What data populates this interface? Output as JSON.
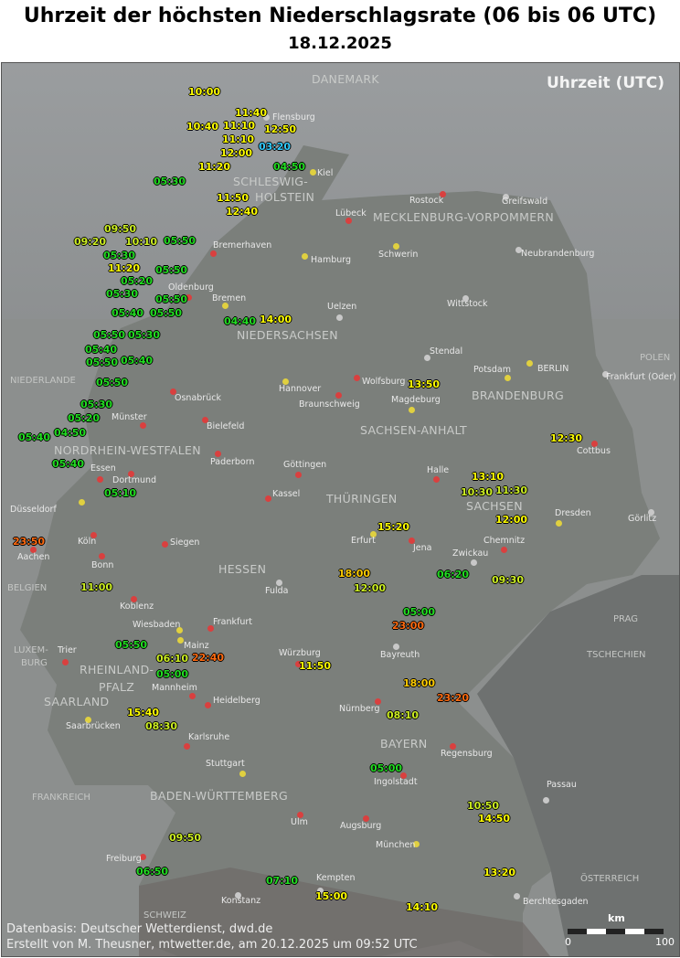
{
  "title": "Uhrzeit der höchsten Niederschlagsrate (06 bis 06 UTC)",
  "date": "18.12.2025",
  "corner_label": "Uhrzeit (UTC)",
  "footer": {
    "line1": "Datenbasis: Deutscher Wetterdienst, dwd.de",
    "line2": "Erstellt von M. Theusner, mtwetter.de, am 20.12.2025 um 09:52 UTC"
  },
  "scale": {
    "unit": "km",
    "min": "0",
    "max": "100"
  },
  "colors": {
    "cyan": "#33ccff",
    "green": "#22dd22",
    "yellowgreen": "#ccee22",
    "yellow": "#ffff00",
    "gold": "#ffcc00",
    "orange": "#ff6a10",
    "city_red": "#d9403f",
    "city_yellow": "#e0d040",
    "city_grey": "#c8c8c8"
  },
  "regions": [
    "DANEMARK",
    "SCHLESWIG-",
    "HOLSTEIN",
    "MECKLENBURG-VORPOMMERN",
    "NIEDERSACHSEN",
    "BRANDENBURG",
    "SACHSEN-ANHALT",
    "NORDRHEIN-WESTFALEN",
    "THÜRINGEN",
    "SACHSEN",
    "HESSEN",
    "RHEINLAND-",
    "PFALZ",
    "SAARLAND",
    "BAYERN",
    "BADEN-WÜRTTEMBERG"
  ],
  "countries": [
    "NIEDERLANDE",
    "BELGIEN",
    "LUXEM-",
    "BURG",
    "FRANKREICH",
    "TSCHECHIEN",
    "ÖSTERREICH",
    "POLEN",
    "SCHWEIZ",
    "PRAG"
  ],
  "cities": [
    {
      "name": "Flensburg",
      "type": "grey"
    },
    {
      "name": "Kiel",
      "type": "yellow"
    },
    {
      "name": "Rostock",
      "type": "red"
    },
    {
      "name": "Greifswald",
      "type": "grey"
    },
    {
      "name": "Lübeck",
      "type": "red"
    },
    {
      "name": "Schwerin",
      "type": "yellow"
    },
    {
      "name": "Hamburg",
      "type": "yellow"
    },
    {
      "name": "Bremerhaven",
      "type": "red"
    },
    {
      "name": "Neubrandenburg",
      "type": "grey"
    },
    {
      "name": "Oldenburg",
      "type": "red"
    },
    {
      "name": "Bremen",
      "type": "yellow"
    },
    {
      "name": "Uelzen",
      "type": "grey"
    },
    {
      "name": "Wittstock",
      "type": "grey"
    },
    {
      "name": "Stendal",
      "type": "grey"
    },
    {
      "name": "Potsdam",
      "type": "yellow"
    },
    {
      "name": "BERLIN",
      "type": "yellow"
    },
    {
      "name": "Frankfurt (Oder)",
      "type": "grey"
    },
    {
      "name": "Wolfsburg",
      "type": "red"
    },
    {
      "name": "Hannover",
      "type": "yellow"
    },
    {
      "name": "Braunschweig",
      "type": "red"
    },
    {
      "name": "Magdeburg",
      "type": "yellow"
    },
    {
      "name": "Osnabrück",
      "type": "red"
    },
    {
      "name": "Bielefeld",
      "type": "red"
    },
    {
      "name": "Münster",
      "type": "red"
    },
    {
      "name": "Paderborn",
      "type": "red"
    },
    {
      "name": "Dortmund",
      "type": "red"
    },
    {
      "name": "Göttingen",
      "type": "red"
    },
    {
      "name": "Halle",
      "type": "red"
    },
    {
      "name": "Cottbus",
      "type": "red"
    },
    {
      "name": "Kassel",
      "type": "red"
    },
    {
      "name": "Dresden",
      "type": "yellow"
    },
    {
      "name": "Görlitz",
      "type": "grey"
    },
    {
      "name": "Düsseldorf",
      "type": "yellow"
    },
    {
      "name": "Erfurt",
      "type": "yellow"
    },
    {
      "name": "Jena",
      "type": "red"
    },
    {
      "name": "Chemnitz",
      "type": "red"
    },
    {
      "name": "Zwickau",
      "type": "grey"
    },
    {
      "name": "Köln",
      "type": "red"
    },
    {
      "name": "Siegen",
      "type": "red"
    },
    {
      "name": "Aachen",
      "type": "red"
    },
    {
      "name": "Bonn",
      "type": "red"
    },
    {
      "name": "Fulda",
      "type": "grey"
    },
    {
      "name": "Koblenz",
      "type": "red"
    },
    {
      "name": "Wiesbaden",
      "type": "yellow"
    },
    {
      "name": "Frankfurt",
      "type": "red"
    },
    {
      "name": "Mainz",
      "type": "yellow"
    },
    {
      "name": "Würzburg",
      "type": "red"
    },
    {
      "name": "Bayreuth",
      "type": "grey"
    },
    {
      "name": "Trier",
      "type": "red"
    },
    {
      "name": "Mannheim",
      "type": "red"
    },
    {
      "name": "Heidelberg",
      "type": "red"
    },
    {
      "name": "Nürnberg",
      "type": "red"
    },
    {
      "name": "Saarbrücken",
      "type": "yellow"
    },
    {
      "name": "Karlsruhe",
      "type": "red"
    },
    {
      "name": "Regensburg",
      "type": "red"
    },
    {
      "name": "Stuttgart",
      "type": "yellow"
    },
    {
      "name": "Ingolstadt",
      "type": "red"
    },
    {
      "name": "Passau",
      "type": "grey"
    },
    {
      "name": "Ulm",
      "type": "red"
    },
    {
      "name": "Augsburg",
      "type": "red"
    },
    {
      "name": "München",
      "type": "yellow"
    },
    {
      "name": "Freiburg",
      "type": "red"
    },
    {
      "name": "Kempten",
      "type": "grey"
    },
    {
      "name": "Konstanz",
      "type": "grey"
    },
    {
      "name": "Berchtesgaden",
      "type": "grey"
    },
    {
      "name": "Essen",
      "type": "red"
    }
  ],
  "markers": [
    {
      "time": "10:00",
      "color": "yellow"
    },
    {
      "time": "11:40",
      "color": "yellow"
    },
    {
      "time": "11:10",
      "color": "yellow"
    },
    {
      "time": "10:40",
      "color": "yellow"
    },
    {
      "time": "12:50",
      "color": "yellow"
    },
    {
      "time": "11:10",
      "color": "yellow"
    },
    {
      "time": "03:20",
      "color": "cyan"
    },
    {
      "time": "12:00",
      "color": "yellow"
    },
    {
      "time": "11:20",
      "color": "yellow"
    },
    {
      "time": "11:50",
      "color": "yellow"
    },
    {
      "time": "04:50",
      "color": "green"
    },
    {
      "time": "05:30",
      "color": "green"
    },
    {
      "time": "12:40",
      "color": "yellow"
    },
    {
      "time": "09:50",
      "color": "yellowgreen"
    },
    {
      "time": "09:20",
      "color": "yellowgreen"
    },
    {
      "time": "10:10",
      "color": "yellowgreen"
    },
    {
      "time": "05:50",
      "color": "green"
    },
    {
      "time": "05:30",
      "color": "green"
    },
    {
      "time": "11:20",
      "color": "yellow"
    },
    {
      "time": "05:50",
      "color": "green"
    },
    {
      "time": "05:20",
      "color": "green"
    },
    {
      "time": "05:30",
      "color": "green"
    },
    {
      "time": "05:50",
      "color": "green"
    },
    {
      "time": "05:50",
      "color": "green"
    },
    {
      "time": "05:40",
      "color": "green"
    },
    {
      "time": "04:40",
      "color": "green"
    },
    {
      "time": "14:00",
      "color": "yellow"
    },
    {
      "time": "05:50",
      "color": "green"
    },
    {
      "time": "05:30",
      "color": "green"
    },
    {
      "time": "05:40",
      "color": "green"
    },
    {
      "time": "05:50",
      "color": "green"
    },
    {
      "time": "05:40",
      "color": "green"
    },
    {
      "time": "05:50",
      "color": "green"
    },
    {
      "time": "05:30",
      "color": "green"
    },
    {
      "time": "04:50",
      "color": "green"
    },
    {
      "time": "05:20",
      "color": "green"
    },
    {
      "time": "05:40",
      "color": "green"
    },
    {
      "time": "05:40",
      "color": "green"
    },
    {
      "time": "05:10",
      "color": "green"
    },
    {
      "time": "23:50",
      "color": "orange"
    },
    {
      "time": "11:00",
      "color": "yellowgreen"
    },
    {
      "time": "05:50",
      "color": "green"
    },
    {
      "time": "06:10",
      "color": "yellowgreen"
    },
    {
      "time": "05:00",
      "color": "green"
    },
    {
      "time": "22:40",
      "color": "orange"
    },
    {
      "time": "11:50",
      "color": "yellow"
    },
    {
      "time": "15:40",
      "color": "yellow"
    },
    {
      "time": "08:30",
      "color": "yellowgreen"
    },
    {
      "time": "13:50",
      "color": "yellow"
    },
    {
      "time": "12:30",
      "color": "yellow"
    },
    {
      "time": "15:20",
      "color": "yellow"
    },
    {
      "time": "10:30",
      "color": "yellowgreen"
    },
    {
      "time": "11:30",
      "color": "yellowgreen"
    },
    {
      "time": "13:10",
      "color": "yellow"
    },
    {
      "time": "12:00",
      "color": "yellow"
    },
    {
      "time": "12:00",
      "color": "yellowgreen"
    },
    {
      "time": "18:00",
      "color": "gold"
    },
    {
      "time": "06:20",
      "color": "green"
    },
    {
      "time": "09:30",
      "color": "yellowgreen"
    },
    {
      "time": "05:00",
      "color": "green"
    },
    {
      "time": "23:00",
      "color": "orange"
    },
    {
      "time": "18:00",
      "color": "gold"
    },
    {
      "time": "23:20",
      "color": "orange"
    },
    {
      "time": "08:10",
      "color": "yellowgreen"
    },
    {
      "time": "05:00",
      "color": "green"
    },
    {
      "time": "10:50",
      "color": "yellowgreen"
    },
    {
      "time": "14:50",
      "color": "yellow"
    },
    {
      "time": "09:50",
      "color": "yellowgreen"
    },
    {
      "time": "06:50",
      "color": "green"
    },
    {
      "time": "07:10",
      "color": "green"
    },
    {
      "time": "15:00",
      "color": "yellow"
    },
    {
      "time": "13:20",
      "color": "yellow"
    },
    {
      "time": "14:10",
      "color": "yellow"
    }
  ]
}
